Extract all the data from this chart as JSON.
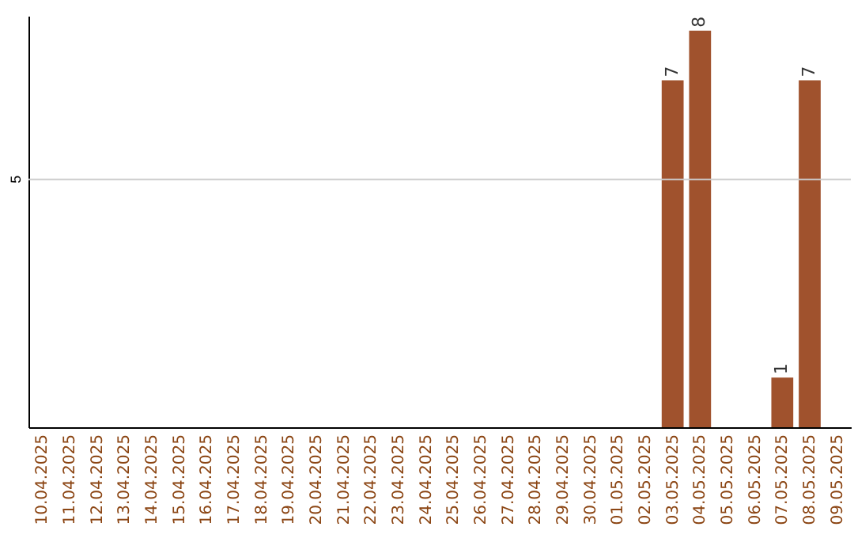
{
  "chart_data": {
    "type": "bar",
    "categories": [
      "10.04.2025",
      "11.04.2025",
      "12.04.2025",
      "13.04.2025",
      "14.04.2025",
      "15.04.2025",
      "16.04.2025",
      "17.04.2025",
      "18.04.2025",
      "19.04.2025",
      "20.04.2025",
      "21.04.2025",
      "22.04.2025",
      "23.04.2025",
      "24.04.2025",
      "25.04.2025",
      "26.04.2025",
      "27.04.2025",
      "28.04.2025",
      "29.04.2025",
      "30.04.2025",
      "01.05.2025",
      "02.05.2025",
      "03.05.2025",
      "04.05.2025",
      "05.05.2025",
      "06.05.2025",
      "07.05.2025",
      "08.05.2025",
      "09.05.2025"
    ],
    "values": [
      null,
      null,
      null,
      null,
      null,
      null,
      null,
      null,
      null,
      null,
      null,
      null,
      null,
      null,
      null,
      null,
      null,
      null,
      null,
      null,
      null,
      null,
      null,
      7,
      8,
      null,
      null,
      1,
      7,
      null
    ],
    "data_labels": true,
    "color": "#a0522d",
    "ylim": [
      0,
      8.3
    ],
    "ref_lines": [
      {
        "axis": "y",
        "value": 5,
        "label": "5",
        "color": "#cccccc"
      }
    ]
  }
}
